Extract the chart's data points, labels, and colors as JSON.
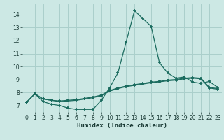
{
  "xlabel": "Humidex (Indice chaleur)",
  "xlim": [
    -0.5,
    23.5
  ],
  "ylim": [
    6.5,
    14.8
  ],
  "yticks": [
    7,
    8,
    9,
    10,
    11,
    12,
    13,
    14
  ],
  "xticks": [
    0,
    1,
    2,
    3,
    4,
    5,
    6,
    7,
    8,
    9,
    10,
    11,
    12,
    13,
    14,
    15,
    16,
    17,
    18,
    19,
    20,
    21,
    22,
    23
  ],
  "bg_color": "#cce8e4",
  "grid_color": "#aacfcb",
  "line_color": "#1a6b5e",
  "series1_x": [
    0,
    1,
    2,
    3,
    4,
    5,
    6,
    7,
    8,
    9,
    10,
    11,
    12,
    13,
    14,
    15,
    16,
    17,
    18,
    19,
    20,
    21,
    22,
    23
  ],
  "series1_y": [
    7.25,
    7.9,
    7.3,
    7.1,
    7.0,
    6.8,
    6.7,
    6.7,
    6.7,
    7.4,
    8.35,
    9.5,
    11.9,
    14.3,
    13.7,
    13.1,
    10.3,
    9.5,
    9.1,
    9.2,
    8.8,
    8.7,
    8.85,
    8.4
  ],
  "series2_x": [
    0,
    1,
    2,
    3,
    4,
    5,
    6,
    7,
    8,
    9,
    10,
    11,
    12,
    13,
    14,
    15,
    16,
    17,
    18,
    19,
    20,
    21,
    22,
    23
  ],
  "series2_y": [
    7.25,
    7.9,
    7.5,
    7.4,
    7.3,
    7.35,
    7.4,
    7.5,
    7.6,
    7.75,
    8.1,
    8.3,
    8.45,
    8.55,
    8.65,
    8.75,
    8.82,
    8.9,
    8.95,
    9.05,
    9.1,
    9.05,
    8.35,
    8.25
  ],
  "series3_x": [
    0,
    1,
    2,
    3,
    4,
    5,
    6,
    7,
    8,
    9,
    10,
    11,
    12,
    13,
    14,
    15,
    16,
    17,
    18,
    19,
    20,
    21,
    22,
    23
  ],
  "series3_y": [
    7.25,
    7.9,
    7.5,
    7.4,
    7.35,
    7.4,
    7.45,
    7.55,
    7.65,
    7.8,
    8.15,
    8.35,
    8.5,
    8.6,
    8.7,
    8.8,
    8.85,
    8.95,
    9.0,
    9.1,
    9.15,
    9.1,
    8.4,
    8.3
  ]
}
